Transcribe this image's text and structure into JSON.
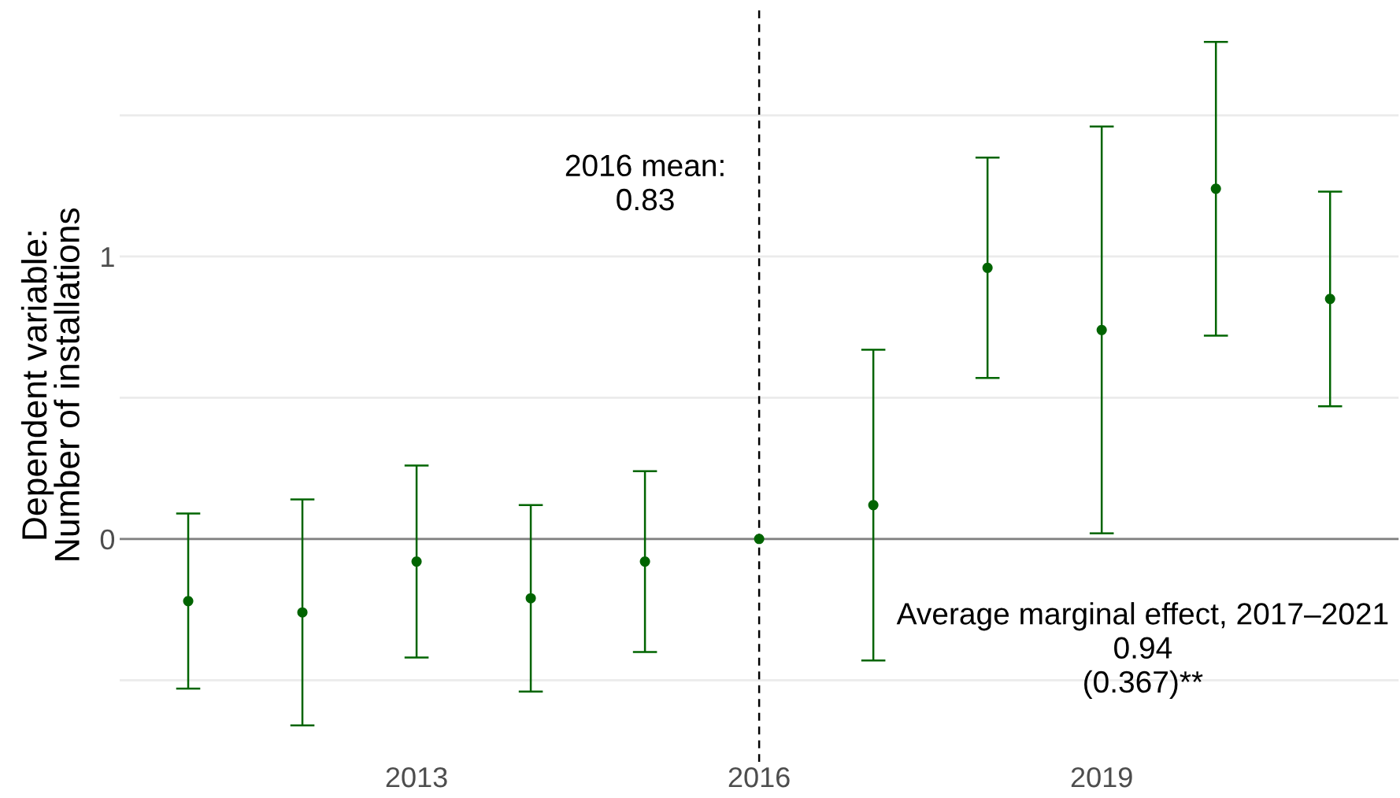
{
  "chart_data": {
    "type": "scatter",
    "ylabel": "Dependent variable:\nNumber of installations",
    "x": [
      2011,
      2012,
      2013,
      2014,
      2015,
      2016,
      2017,
      2018,
      2019,
      2020,
      2021
    ],
    "series": [
      {
        "color": "#006400",
        "values": [
          -0.22,
          -0.26,
          -0.08,
          -0.21,
          -0.08,
          0,
          0.12,
          0.96,
          0.74,
          1.24,
          0.85
        ],
        "errors": [
          0.31,
          0.4,
          0.34,
          0.33,
          0.32,
          null,
          0.55,
          0.39,
          0.72,
          0.52,
          0.38
        ]
      }
    ],
    "xlim": [
      2010.4,
      2021.6
    ],
    "xticks": [
      2013,
      2016,
      2019
    ],
    "ylim": [
      -0.79,
      1.88
    ],
    "yticks": [
      {
        "value": -0.5,
        "label": null
      },
      0,
      {
        "value": 0.5,
        "label": null
      },
      1,
      {
        "value": 1.5,
        "label": null
      }
    ],
    "grid": "y",
    "marker": "circle",
    "ref_lines": [
      {
        "axis": "y",
        "value": 0,
        "color": "#808080",
        "line_style": "solid"
      },
      {
        "axis": "x",
        "value": 2016,
        "color": "#000000",
        "line_style": "dashed"
      }
    ],
    "annotations": [
      "2016 mean:\n0.83",
      "Average marginal effect, 2017–2021\n0.94\n(0.367)**"
    ]
  }
}
